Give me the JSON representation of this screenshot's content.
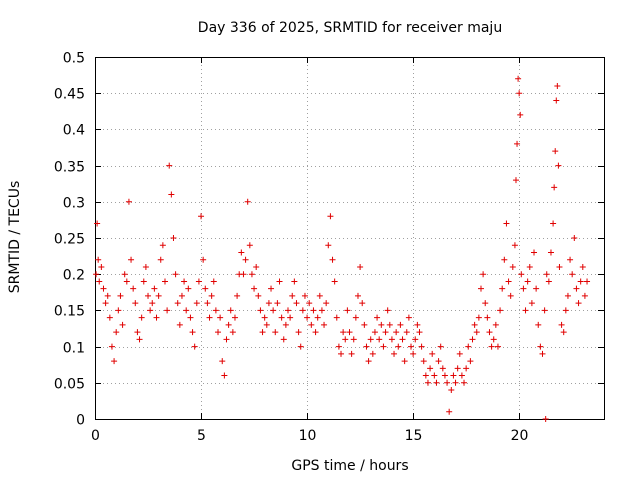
{
  "chart_data": {
    "type": "scatter",
    "title": "Day 336 of 2025, SRMTID for receiver maju",
    "xlabel": "GPS time / hours",
    "ylabel": "SRMTID / TECUs",
    "xlim": [
      0,
      24
    ],
    "ylim": [
      0,
      0.5
    ],
    "xticks": [
      0,
      5,
      10,
      15,
      20
    ],
    "xtick_labels": [
      "0",
      "5",
      "10",
      "15",
      "20"
    ],
    "yticks": [
      0,
      0.05,
      0.1,
      0.15,
      0.2,
      0.25,
      0.3,
      0.35,
      0.4,
      0.45,
      0.5
    ],
    "ytick_labels": [
      "0",
      "0.05",
      "0.1",
      "0.15",
      "0.2",
      "0.25",
      "0.3",
      "0.35",
      "0.4",
      "0.45",
      "0.5"
    ],
    "grid": true,
    "marker": "+",
    "color": "#e00000",
    "series": [
      {
        "name": "SRMTID",
        "points": [
          [
            0.05,
            0.2
          ],
          [
            0.1,
            0.27
          ],
          [
            0.15,
            0.22
          ],
          [
            0.2,
            0.19
          ],
          [
            0.3,
            0.21
          ],
          [
            0.4,
            0.18
          ],
          [
            0.5,
            0.16
          ],
          [
            0.6,
            0.17
          ],
          [
            0.7,
            0.14
          ],
          [
            0.8,
            0.1
          ],
          [
            0.9,
            0.08
          ],
          [
            1.0,
            0.12
          ],
          [
            1.1,
            0.15
          ],
          [
            1.2,
            0.17
          ],
          [
            1.3,
            0.13
          ],
          [
            1.4,
            0.2
          ],
          [
            1.5,
            0.19
          ],
          [
            1.6,
            0.3
          ],
          [
            1.7,
            0.22
          ],
          [
            1.8,
            0.18
          ],
          [
            1.9,
            0.16
          ],
          [
            2.0,
            0.12
          ],
          [
            2.1,
            0.11
          ],
          [
            2.2,
            0.14
          ],
          [
            2.3,
            0.19
          ],
          [
            2.4,
            0.21
          ],
          [
            2.5,
            0.17
          ],
          [
            2.6,
            0.15
          ],
          [
            2.7,
            0.16
          ],
          [
            2.8,
            0.18
          ],
          [
            2.9,
            0.14
          ],
          [
            3.0,
            0.17
          ],
          [
            3.1,
            0.22
          ],
          [
            3.2,
            0.24
          ],
          [
            3.3,
            0.19
          ],
          [
            3.4,
            0.15
          ],
          [
            3.5,
            0.35
          ],
          [
            3.6,
            0.31
          ],
          [
            3.7,
            0.25
          ],
          [
            3.8,
            0.2
          ],
          [
            3.9,
            0.16
          ],
          [
            4.0,
            0.13
          ],
          [
            4.1,
            0.17
          ],
          [
            4.2,
            0.19
          ],
          [
            4.3,
            0.15
          ],
          [
            4.4,
            0.18
          ],
          [
            4.5,
            0.14
          ],
          [
            4.6,
            0.12
          ],
          [
            4.7,
            0.1
          ],
          [
            4.8,
            0.16
          ],
          [
            4.9,
            0.19
          ],
          [
            5.0,
            0.28
          ],
          [
            5.1,
            0.22
          ],
          [
            5.2,
            0.18
          ],
          [
            5.3,
            0.16
          ],
          [
            5.4,
            0.14
          ],
          [
            5.5,
            0.17
          ],
          [
            5.6,
            0.19
          ],
          [
            5.7,
            0.15
          ],
          [
            5.8,
            0.12
          ],
          [
            5.9,
            0.14
          ],
          [
            6.0,
            0.08
          ],
          [
            6.1,
            0.06
          ],
          [
            6.2,
            0.11
          ],
          [
            6.3,
            0.13
          ],
          [
            6.4,
            0.15
          ],
          [
            6.5,
            0.12
          ],
          [
            6.6,
            0.14
          ],
          [
            6.7,
            0.17
          ],
          [
            6.8,
            0.2
          ],
          [
            6.9,
            0.23
          ],
          [
            7.0,
            0.2
          ],
          [
            7.1,
            0.22
          ],
          [
            7.2,
            0.3
          ],
          [
            7.3,
            0.24
          ],
          [
            7.4,
            0.2
          ],
          [
            7.5,
            0.18
          ],
          [
            7.6,
            0.21
          ],
          [
            7.7,
            0.17
          ],
          [
            7.8,
            0.15
          ],
          [
            7.9,
            0.12
          ],
          [
            8.0,
            0.14
          ],
          [
            8.1,
            0.13
          ],
          [
            8.2,
            0.16
          ],
          [
            8.3,
            0.18
          ],
          [
            8.4,
            0.15
          ],
          [
            8.5,
            0.12
          ],
          [
            8.6,
            0.16
          ],
          [
            8.7,
            0.19
          ],
          [
            8.8,
            0.14
          ],
          [
            8.9,
            0.11
          ],
          [
            9.0,
            0.13
          ],
          [
            9.1,
            0.15
          ],
          [
            9.2,
            0.14
          ],
          [
            9.3,
            0.17
          ],
          [
            9.4,
            0.19
          ],
          [
            9.5,
            0.16
          ],
          [
            9.6,
            0.12
          ],
          [
            9.7,
            0.1
          ],
          [
            9.8,
            0.15
          ],
          [
            9.9,
            0.17
          ],
          [
            10.0,
            0.14
          ],
          [
            10.1,
            0.16
          ],
          [
            10.2,
            0.13
          ],
          [
            10.3,
            0.15
          ],
          [
            10.4,
            0.12
          ],
          [
            10.5,
            0.14
          ],
          [
            10.6,
            0.17
          ],
          [
            10.7,
            0.15
          ],
          [
            10.8,
            0.13
          ],
          [
            10.9,
            0.16
          ],
          [
            11.0,
            0.24
          ],
          [
            11.1,
            0.28
          ],
          [
            11.2,
            0.22
          ],
          [
            11.3,
            0.19
          ],
          [
            11.4,
            0.14
          ],
          [
            11.5,
            0.1
          ],
          [
            11.6,
            0.09
          ],
          [
            11.7,
            0.12
          ],
          [
            11.8,
            0.11
          ],
          [
            11.9,
            0.15
          ],
          [
            12.0,
            0.12
          ],
          [
            12.1,
            0.09
          ],
          [
            12.2,
            0.11
          ],
          [
            12.3,
            0.14
          ],
          [
            12.4,
            0.17
          ],
          [
            12.5,
            0.21
          ],
          [
            12.6,
            0.16
          ],
          [
            12.7,
            0.13
          ],
          [
            12.8,
            0.1
          ],
          [
            12.9,
            0.08
          ],
          [
            13.0,
            0.11
          ],
          [
            13.1,
            0.09
          ],
          [
            13.2,
            0.12
          ],
          [
            13.3,
            0.14
          ],
          [
            13.4,
            0.11
          ],
          [
            13.5,
            0.13
          ],
          [
            13.6,
            0.1
          ],
          [
            13.7,
            0.12
          ],
          [
            13.8,
            0.15
          ],
          [
            13.9,
            0.13
          ],
          [
            14.0,
            0.11
          ],
          [
            14.1,
            0.09
          ],
          [
            14.2,
            0.12
          ],
          [
            14.3,
            0.1
          ],
          [
            14.4,
            0.13
          ],
          [
            14.5,
            0.11
          ],
          [
            14.6,
            0.08
          ],
          [
            14.7,
            0.12
          ],
          [
            14.8,
            0.14
          ],
          [
            14.9,
            0.1
          ],
          [
            15.0,
            0.09
          ],
          [
            15.1,
            0.11
          ],
          [
            15.2,
            0.13
          ],
          [
            15.3,
            0.12
          ],
          [
            15.4,
            0.1
          ],
          [
            15.5,
            0.08
          ],
          [
            15.6,
            0.06
          ],
          [
            15.7,
            0.05
          ],
          [
            15.8,
            0.07
          ],
          [
            15.9,
            0.09
          ],
          [
            16.0,
            0.06
          ],
          [
            16.1,
            0.05
          ],
          [
            16.2,
            0.08
          ],
          [
            16.3,
            0.1
          ],
          [
            16.4,
            0.07
          ],
          [
            16.5,
            0.06
          ],
          [
            16.6,
            0.05
          ],
          [
            16.7,
            0.01
          ],
          [
            16.8,
            0.04
          ],
          [
            16.9,
            0.06
          ],
          [
            17.0,
            0.05
          ],
          [
            17.1,
            0.07
          ],
          [
            17.2,
            0.09
          ],
          [
            17.3,
            0.06
          ],
          [
            17.4,
            0.05
          ],
          [
            17.5,
            0.07
          ],
          [
            17.6,
            0.1
          ],
          [
            17.7,
            0.08
          ],
          [
            17.8,
            0.11
          ],
          [
            17.9,
            0.13
          ],
          [
            18.0,
            0.12
          ],
          [
            18.1,
            0.14
          ],
          [
            18.2,
            0.18
          ],
          [
            18.3,
            0.2
          ],
          [
            18.4,
            0.16
          ],
          [
            18.5,
            0.14
          ],
          [
            18.6,
            0.12
          ],
          [
            18.7,
            0.1
          ],
          [
            18.8,
            0.11
          ],
          [
            18.9,
            0.13
          ],
          [
            19.0,
            0.1
          ],
          [
            19.1,
            0.15
          ],
          [
            19.2,
            0.18
          ],
          [
            19.3,
            0.22
          ],
          [
            19.4,
            0.27
          ],
          [
            19.5,
            0.19
          ],
          [
            19.6,
            0.17
          ],
          [
            19.7,
            0.21
          ],
          [
            19.8,
            0.24
          ],
          [
            19.85,
            0.33
          ],
          [
            19.9,
            0.38
          ],
          [
            19.95,
            0.47
          ],
          [
            20.0,
            0.45
          ],
          [
            20.05,
            0.42
          ],
          [
            20.1,
            0.2
          ],
          [
            20.2,
            0.18
          ],
          [
            20.3,
            0.15
          ],
          [
            20.4,
            0.19
          ],
          [
            20.5,
            0.21
          ],
          [
            20.6,
            0.16
          ],
          [
            20.7,
            0.23
          ],
          [
            20.8,
            0.18
          ],
          [
            20.9,
            0.13
          ],
          [
            21.0,
            0.1
          ],
          [
            21.1,
            0.09
          ],
          [
            21.2,
            0.15
          ],
          [
            21.3,
            0.2
          ],
          [
            21.4,
            0.19
          ],
          [
            21.5,
            0.23
          ],
          [
            21.6,
            0.27
          ],
          [
            21.65,
            0.32
          ],
          [
            21.7,
            0.37
          ],
          [
            21.75,
            0.44
          ],
          [
            21.8,
            0.46
          ],
          [
            21.85,
            0.35
          ],
          [
            21.9,
            0.21
          ],
          [
            22.0,
            0.13
          ],
          [
            22.1,
            0.12
          ],
          [
            22.2,
            0.15
          ],
          [
            22.3,
            0.17
          ],
          [
            22.4,
            0.22
          ],
          [
            22.5,
            0.2
          ],
          [
            22.6,
            0.25
          ],
          [
            22.7,
            0.18
          ],
          [
            22.8,
            0.16
          ],
          [
            22.9,
            0.19
          ],
          [
            23.0,
            0.21
          ],
          [
            23.1,
            0.17
          ],
          [
            23.2,
            0.19
          ],
          [
            21.25,
            0.0
          ]
        ]
      }
    ]
  }
}
